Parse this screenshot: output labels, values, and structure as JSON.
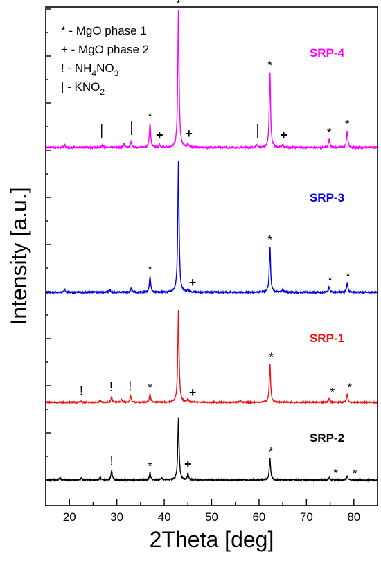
{
  "chart_data": {
    "type": "line",
    "xlabel": "2Theta [deg]",
    "ylabel": "Intensity [a.u.]",
    "xlim": [
      15,
      85
    ],
    "x_ticks": [
      20,
      30,
      40,
      50,
      60,
      70,
      80
    ],
    "legend": {
      "placement": "top-left",
      "entries": [
        {
          "symbol": "*",
          "text": "- MgO phase 1"
        },
        {
          "symbol": "+",
          "text": "- MgO phase 2"
        },
        {
          "symbol": "!",
          "text": "- NH",
          "sub": "4",
          "text2": "NO",
          "sub2": "3"
        },
        {
          "symbol": "|",
          "text": "- KNO",
          "sub": "2"
        }
      ]
    },
    "series": [
      {
        "name": "SRP-4",
        "color": "#ff00ff",
        "peaks": [
          [
            19,
            0.02
          ],
          [
            27,
            0.02
          ],
          [
            31.5,
            0.03
          ],
          [
            33,
            0.04
          ],
          [
            37,
            0.18
          ],
          [
            39,
            0.02
          ],
          [
            43,
            1.0
          ],
          [
            45,
            0.03
          ],
          [
            59.5,
            0.02
          ],
          [
            62.3,
            0.55
          ],
          [
            65,
            0.02
          ],
          [
            74.8,
            0.06
          ],
          [
            78.6,
            0.12
          ]
        ],
        "markers": [
          {
            "symbol": "|",
            "x": 26.8
          },
          {
            "symbol": "|",
            "x": 33.1
          },
          {
            "symbol": "*",
            "x": 37
          },
          {
            "symbol": "+",
            "x": 39
          },
          {
            "symbol": "*",
            "x": 43
          },
          {
            "symbol": "+",
            "x": 45.2
          },
          {
            "symbol": "|",
            "x": 59.7
          },
          {
            "symbol": "*",
            "x": 62.3
          },
          {
            "symbol": "+",
            "x": 65.2
          },
          {
            "symbol": "*",
            "x": 74.8
          },
          {
            "symbol": "*",
            "x": 78.6
          }
        ]
      },
      {
        "name": "SRP-3",
        "color": "#0000e6",
        "peaks": [
          [
            19,
            0.02
          ],
          [
            28.5,
            0.02
          ],
          [
            33,
            0.03
          ],
          [
            37,
            0.12
          ],
          [
            43,
            1.0
          ],
          [
            45,
            0.02
          ],
          [
            62.3,
            0.35
          ],
          [
            65,
            0.02
          ],
          [
            74.8,
            0.04
          ],
          [
            78.6,
            0.07
          ]
        ],
        "markers": [
          {
            "symbol": "*",
            "x": 37
          },
          {
            "symbol": "+",
            "x": 46
          },
          {
            "symbol": "*",
            "x": 62.3
          },
          {
            "symbol": "*",
            "x": 75
          },
          {
            "symbol": "*",
            "x": 78.8
          }
        ]
      },
      {
        "name": "SRP-1",
        "color": "#ee1111",
        "peaks": [
          [
            22.3,
            0.02
          ],
          [
            26.5,
            0.02
          ],
          [
            28.9,
            0.06
          ],
          [
            31,
            0.03
          ],
          [
            32.9,
            0.07
          ],
          [
            37,
            0.09
          ],
          [
            43,
            1.0
          ],
          [
            45,
            0.04
          ],
          [
            56,
            0.02
          ],
          [
            62.3,
            0.42
          ],
          [
            74.8,
            0.04
          ],
          [
            78.6,
            0.09
          ]
        ],
        "markers": [
          {
            "symbol": "!",
            "x": 22.5
          },
          {
            "symbol": "!",
            "x": 28.8
          },
          {
            "symbol": "!",
            "x": 32.8
          },
          {
            "symbol": "*",
            "x": 37
          },
          {
            "symbol": "+",
            "x": 46
          },
          {
            "symbol": "*",
            "x": 62.6
          },
          {
            "symbol": "*",
            "x": 75.5
          },
          {
            "symbol": "*",
            "x": 79.1
          }
        ]
      },
      {
        "name": "SRP-2",
        "color": "#000000",
        "peaks": [
          [
            18,
            0.02
          ],
          [
            22.5,
            0.02
          ],
          [
            26.5,
            0.02
          ],
          [
            28.9,
            0.09
          ],
          [
            37,
            0.07
          ],
          [
            39.5,
            0.02
          ],
          [
            43,
            0.6
          ],
          [
            45,
            0.06
          ],
          [
            62.3,
            0.21
          ],
          [
            74.8,
            0.02
          ],
          [
            78.6,
            0.04
          ]
        ],
        "markers": [
          {
            "symbol": "!",
            "x": 28.9
          },
          {
            "symbol": "*",
            "x": 37
          },
          {
            "symbol": "+",
            "x": 45
          },
          {
            "symbol": "*",
            "x": 62.5
          },
          {
            "symbol": "*",
            "x": 76.2
          },
          {
            "symbol": "*",
            "x": 80.2
          }
        ]
      }
    ]
  }
}
